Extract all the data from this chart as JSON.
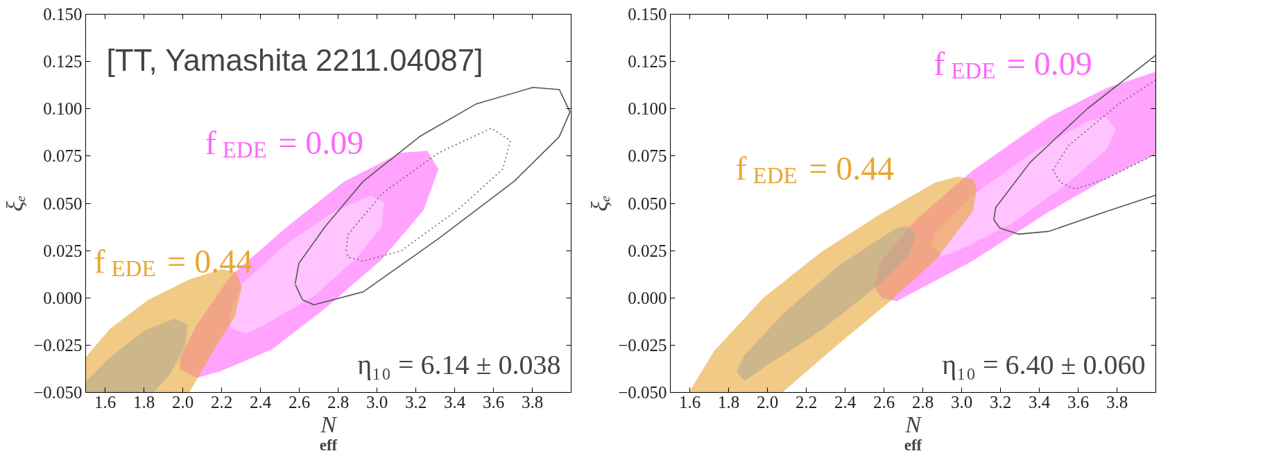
{
  "chart_data": [
    {
      "type": "area",
      "xlabel": "N$_{eff}$",
      "ylabel": "ξₑ",
      "annotations": [
        "[TT, Yamashita 2211.04087]",
        "η₁₀ = 6.14 ± 0.038"
      ],
      "xlim": [
        1.5,
        4.0
      ],
      "ylim": [
        -0.05,
        0.15
      ],
      "xticks": [
        {
          "value": 1.6,
          "label": "1.6"
        },
        {
          "value": 1.8,
          "label": "1.8"
        },
        {
          "value": 2.0,
          "label": "2.0"
        },
        {
          "value": 2.2,
          "label": "2.2"
        },
        {
          "value": 2.4,
          "label": "2.4"
        },
        {
          "value": 2.6,
          "label": "2.6"
        },
        {
          "value": 2.8,
          "label": "2.8"
        },
        {
          "value": 3.0,
          "label": "3.0"
        },
        {
          "value": 3.2,
          "label": "3.2"
        },
        {
          "value": 3.4,
          "label": "3.4"
        },
        {
          "value": 3.6,
          "label": "3.6"
        },
        {
          "value": 3.8,
          "label": "3.8"
        }
      ],
      "yticks": [
        {
          "value": -0.05,
          "label": "−0.050"
        },
        {
          "value": -0.025,
          "label": "−0.025"
        },
        {
          "value": 0,
          "label": "0.000"
        },
        {
          "value": 0.025,
          "label": "0.025"
        },
        {
          "value": 0.05,
          "label": "0.050"
        },
        {
          "value": 0.075,
          "label": "0.075"
        },
        {
          "value": 0.1,
          "label": "0.100"
        },
        {
          "value": 0.125,
          "label": "0.125"
        },
        {
          "value": 0.15,
          "label": "0.150"
        }
      ],
      "series": [
        {
          "name": "f$_{EDE}$ = 0.09",
          "color": "#ff66ff",
          "x": [
            1.986,
            2.073,
            2.248,
            2.54,
            2.831,
            3.123,
            3.259,
            3.317,
            3.24,
            3.026,
            2.734,
            2.462,
            2.19,
            2.073,
            1.986
          ],
          "values": [
            -0.0314,
            -0.0141,
            0.0118,
            0.0378,
            0.0616,
            0.0767,
            0.0778,
            0.0681,
            0.0464,
            0.0205,
            -0.0055,
            -0.0271,
            -0.039,
            -0.0422,
            -0.0379
          ]
        },
        {
          "color": "#ffd8ff",
          "x": [
            2.239,
            2.307,
            2.54,
            2.793,
            2.967,
            3.035,
            3.026,
            2.89,
            2.676,
            2.423,
            2.326,
            2.248
          ],
          "values": [
            -0.0098,
            0.0075,
            0.0291,
            0.0464,
            0.054,
            0.0508,
            0.0378,
            0.0205,
            0.001,
            -0.0141,
            -0.0189,
            -0.0163
          ]
        },
        {
          "name": "f$_{EDE}$ = 0.44",
          "color": "#e8a735",
          "x": [
            1.5,
            1.5,
            1.626,
            1.821,
            2.034,
            2.2,
            2.277,
            2.303,
            2.268,
            2.151,
            2.034
          ],
          "values": [
            -0.05,
            -0.0314,
            -0.0163,
            -0.0011,
            0.0097,
            0.0151,
            0.0136,
            0.0054,
            -0.0098,
            -0.0292,
            -0.05
          ]
        },
        {
          "color": "#b8a890",
          "x": [
            1.5,
            1.5,
            1.626,
            1.801,
            1.957,
            2.025,
            2.015,
            1.937,
            1.85
          ],
          "values": [
            -0.05,
            -0.0444,
            -0.0314,
            -0.0174,
            -0.0109,
            -0.0141,
            -0.0249,
            -0.04,
            -0.05
          ]
        },
        {
          "type": "line",
          "color": "#555555",
          "line_style": "solid",
          "x": [
            2.579,
            2.598,
            2.734,
            2.929,
            3.22,
            3.512,
            3.803,
            3.939,
            3.994,
            3.939,
            3.706,
            3.317,
            2.929,
            2.676,
            2.617,
            2.58
          ],
          "values": [
            0.0075,
            0.0183,
            0.0378,
            0.0616,
            0.0853,
            0.1026,
            0.1113,
            0.1102,
            0.0983,
            0.0853,
            0.0616,
            0.0313,
            0.0032,
            -0.0037,
            -0.0011,
            0.007
          ]
        },
        {
          "type": "line",
          "color": "#666666",
          "line_style": "dotted",
          "x": [
            2.841,
            2.851,
            3.026,
            3.317,
            3.589,
            3.687,
            3.648,
            3.414,
            3.123,
            2.929,
            2.851,
            2.842
          ],
          "values": [
            0.0248,
            0.0335,
            0.0551,
            0.0767,
            0.0897,
            0.0832,
            0.0681,
            0.0464,
            0.0248,
            0.0194,
            0.0216,
            0.0244
          ]
        }
      ]
    },
    {
      "type": "area",
      "xlabel": "N$_{eff}$",
      "ylabel": "ξₑ",
      "annotations": [
        "η₁₀ = 6.40 ± 0.060"
      ],
      "xlim": [
        1.5,
        4.0
      ],
      "ylim": [
        -0.05,
        0.15
      ],
      "xticks": [
        {
          "value": 1.6,
          "label": "1.6"
        },
        {
          "value": 1.8,
          "label": "1.8"
        },
        {
          "value": 2.0,
          "label": "2.0"
        },
        {
          "value": 2.2,
          "label": "2.2"
        },
        {
          "value": 2.4,
          "label": "2.4"
        },
        {
          "value": 2.6,
          "label": "2.6"
        },
        {
          "value": 2.8,
          "label": "2.8"
        },
        {
          "value": 3.0,
          "label": "3.0"
        },
        {
          "value": 3.2,
          "label": "3.2"
        },
        {
          "value": 3.4,
          "label": "3.4"
        },
        {
          "value": 3.6,
          "label": "3.6"
        },
        {
          "value": 3.8,
          "label": "3.8"
        }
      ],
      "yticks": [
        {
          "value": -0.05,
          "label": "−0.050"
        },
        {
          "value": -0.025,
          "label": "−0.025"
        },
        {
          "value": 0,
          "label": "0.000"
        },
        {
          "value": 0.025,
          "label": "0.025"
        },
        {
          "value": 0.05,
          "label": "0.050"
        },
        {
          "value": 0.075,
          "label": "0.075"
        },
        {
          "value": 0.1,
          "label": "0.100"
        },
        {
          "value": 0.125,
          "label": "0.125"
        },
        {
          "value": 0.15,
          "label": "0.150"
        }
      ],
      "series": [
        {
          "name": "f$_{EDE}$ = 0.09",
          "color": "#ff66ff",
          "x": [
            2.548,
            2.587,
            2.764,
            3.058,
            3.451,
            3.745,
            4.0,
            4.0,
            3.745,
            3.451,
            3.058,
            2.666,
            2.587,
            2.548
          ],
          "values": [
            0.0065,
            0.0196,
            0.0413,
            0.0674,
            0.0957,
            0.1109,
            0.1196,
            0.0761,
            0.063,
            0.0457,
            0.0196,
            -0.0017,
            0.0,
            0.0065
          ]
        },
        {
          "color": "#ffd8ff",
          "x": [
            2.842,
            2.862,
            3.058,
            3.353,
            3.647,
            3.745,
            3.794,
            3.745,
            3.549,
            3.255,
            2.96,
            2.901
          ],
          "values": [
            0.0283,
            0.0348,
            0.0543,
            0.0761,
            0.0935,
            0.0957,
            0.0891,
            0.0783,
            0.0609,
            0.0391,
            0.0239,
            0.0222
          ]
        },
        {
          "name": "f$_{EDE}$ = 0.44",
          "color": "#e8a735",
          "x": [
            1.596,
            1.724,
            1.979,
            2.273,
            2.568,
            2.862,
            2.98,
            3.058,
            3.078,
            3.058,
            2.862,
            2.627,
            2.371,
            2.077
          ],
          "values": [
            -0.05,
            -0.0283,
            0.0,
            0.0239,
            0.0435,
            0.0609,
            0.0641,
            0.063,
            0.0576,
            0.0457,
            0.0196,
            -0.0022,
            -0.0239,
            -0.05
          ]
        },
        {
          "color": "#b8a890",
          "x": [
            1.842,
            1.881,
            2.077,
            2.371,
            2.666,
            2.725,
            2.764,
            2.725,
            2.568,
            2.273,
            1.979,
            1.881
          ],
          "values": [
            -0.0391,
            -0.0304,
            -0.0087,
            0.0174,
            0.037,
            0.038,
            0.0326,
            0.0217,
            0.0065,
            -0.0174,
            -0.037,
            -0.0439
          ]
        },
        {
          "type": "line",
          "color": "#555555",
          "line_style": "solid",
          "x": [
            4.0,
            3.647,
            3.353,
            3.176,
            3.166,
            3.196,
            3.294,
            3.451,
            3.745,
            4.0
          ],
          "values": [
            0.1283,
            0.1,
            0.0717,
            0.0478,
            0.0413,
            0.037,
            0.0337,
            0.0352,
            0.0457,
            0.0543
          ]
        },
        {
          "type": "line",
          "color": "#666666",
          "line_style": "dotted",
          "x": [
            4.0,
            3.804,
            3.549,
            3.471,
            3.51,
            3.588,
            3.745,
            4.0
          ],
          "values": [
            0.1152,
            0.1022,
            0.0804,
            0.0674,
            0.0609,
            0.0576,
            0.063,
            0.0761
          ]
        }
      ]
    }
  ]
}
